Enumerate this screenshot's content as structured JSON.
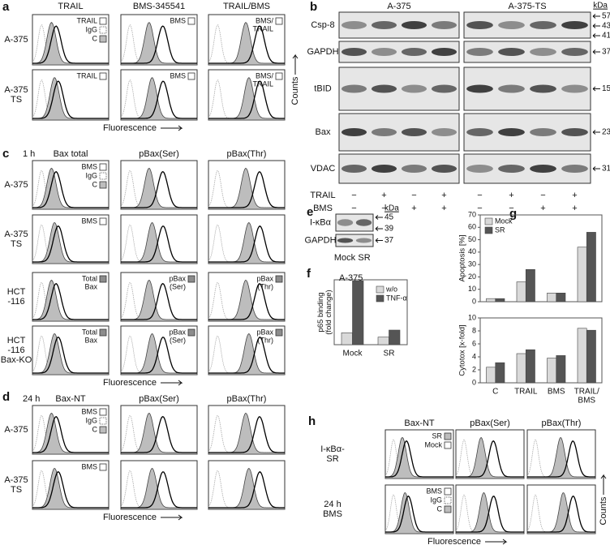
{
  "panels": {
    "a": {
      "label": "a",
      "columns": [
        "TRAIL",
        "BMS-345541",
        "TRAIL/BMS"
      ],
      "rows": [
        "A-375",
        "A-375\nTS"
      ],
      "legends": [
        [
          [
            {
              "text": "TRAIL",
              "fill": "#ffffff"
            },
            {
              "text": "IgG",
              "fill": "#ffffff",
              "border": "dotted"
            },
            {
              "text": "C",
              "fill": "#bdbdbd"
            }
          ],
          [
            {
              "text": "BMS",
              "fill": "#ffffff"
            }
          ],
          [
            {
              "text": "BMS/\nTRAIL",
              "fill": "#ffffff"
            }
          ]
        ],
        [
          [
            {
              "text": "TRAIL",
              "fill": "#ffffff"
            }
          ],
          [
            {
              "text": "BMS",
              "fill": "#ffffff"
            }
          ],
          [
            {
              "text": "BMS/\nTRAIL",
              "fill": "#ffffff"
            }
          ]
        ]
      ],
      "x_axis": "Fluorescence",
      "y_axis": "Counts"
    },
    "b": {
      "label": "b",
      "groups": [
        "A-375",
        "A-375-TS"
      ],
      "kda_title": "kDa",
      "rows": [
        {
          "name": "Csp-8",
          "kda": [
            57,
            43,
            41
          ]
        },
        {
          "name": "GAPDH",
          "kda": [
            37
          ]
        },
        {
          "name": "tBID",
          "kda": [
            15
          ]
        },
        {
          "name": "Bax",
          "kda": [
            23
          ]
        },
        {
          "name": "VDAC",
          "kda": [
            31
          ]
        }
      ],
      "treatments": [
        {
          "name": "TRAIL",
          "signs": [
            "−",
            "+",
            "−",
            "+",
            "−",
            "+",
            "−",
            "+"
          ]
        },
        {
          "name": "BMS",
          "signs": [
            "−",
            "−",
            "+",
            "+",
            "−",
            "−",
            "+",
            "+"
          ]
        }
      ]
    },
    "c": {
      "label": "c",
      "time": "1 h",
      "columns": [
        "Bax total",
        "pBax(Ser)",
        "pBax(Thr)"
      ],
      "rows": [
        "A-375",
        "A-375\nTS",
        "HCT\n-116",
        "HCT\n-116\nBax-KO"
      ],
      "legends": [
        [
          [
            {
              "text": "BMS",
              "fill": "#ffffff"
            },
            {
              "text": "IgG",
              "fill": "#ffffff",
              "border": "dotted"
            },
            {
              "text": "C",
              "fill": "#bdbdbd"
            }
          ],
          [],
          []
        ],
        [
          [
            {
              "text": "BMS",
              "fill": "#ffffff"
            }
          ],
          [],
          []
        ],
        [
          [
            {
              "text": "Total\nBax",
              "fill": "#8c8c8c"
            }
          ],
          [
            {
              "text": "pBax\n(Ser)",
              "fill": "#8c8c8c"
            }
          ],
          [
            {
              "text": "pBax\n(Thr)",
              "fill": "#8c8c8c"
            }
          ]
        ],
        [
          [
            {
              "text": "Total\nBax",
              "fill": "#8c8c8c"
            }
          ],
          [
            {
              "text": "pBax\n(Ser)",
              "fill": "#8c8c8c"
            }
          ],
          [
            {
              "text": "pBax\n(Thr)",
              "fill": "#8c8c8c"
            }
          ]
        ]
      ],
      "x_axis": "Fluorescence"
    },
    "d": {
      "label": "d",
      "time": "24 h",
      "columns": [
        "Bax-NT",
        "pBax(Ser)",
        "pBax(Thr)"
      ],
      "rows": [
        "A-375",
        "A-375\nTS"
      ],
      "legends": [
        [
          [
            {
              "text": "BMS",
              "fill": "#ffffff"
            },
            {
              "text": "IgG",
              "fill": "#ffffff",
              "border": "dotted"
            },
            {
              "text": "C",
              "fill": "#bdbdbd"
            }
          ],
          [],
          []
        ],
        [
          [
            {
              "text": "BMS",
              "fill": "#ffffff"
            }
          ],
          [],
          []
        ]
      ],
      "x_axis": "Fluorescence"
    },
    "e": {
      "label": "e",
      "kda_title": "kDa",
      "rows": [
        {
          "name": "I-κBα",
          "kda": [
            45,
            39
          ]
        },
        {
          "name": "GAPDH",
          "kda": [
            37
          ]
        }
      ],
      "lanes": [
        "Mock",
        "SR"
      ]
    },
    "h": {
      "label": "h",
      "columns": [
        "Bax-NT",
        "pBax(Ser)",
        "pBax(Thr)"
      ],
      "rows": [
        "I-κBα-\nSR",
        "24 h\nBMS"
      ],
      "legends": [
        [
          [
            {
              "text": "SR",
              "fill": "#bdbdbd"
            },
            {
              "text": "Mock",
              "fill": "#ffffff"
            }
          ],
          [],
          []
        ],
        [
          [
            {
              "text": "BMS",
              "fill": "#ffffff"
            },
            {
              "text": "IgG",
              "fill": "#ffffff",
              "border": "dotted"
            },
            {
              "text": "C",
              "fill": "#bdbdbd"
            }
          ],
          [],
          []
        ]
      ],
      "x_axis": "Fluorescence",
      "y_axis": "Counts"
    }
  },
  "chart_data": [
    {
      "type": "bar",
      "label": "f",
      "title": "A-375",
      "y_label": "p65 binding\n(fold change)",
      "categories": [
        "Mock",
        "SR"
      ],
      "series": [
        {
          "name": "w/o",
          "color": "#d9d9d9",
          "values": [
            1.1,
            0.7
          ]
        },
        {
          "name": "TNF-α",
          "color": "#555555",
          "values": [
            5.9,
            1.35
          ]
        }
      ],
      "ylim": [
        0,
        6
      ]
    },
    {
      "type": "bar",
      "label": "g",
      "categories": [
        "C",
        "TRAIL",
        "BMS",
        "TRAIL/\nBMS"
      ],
      "subplots": [
        {
          "y_label": "Apoptosis [%]",
          "ylim": [
            0,
            70
          ],
          "yticks": [
            0,
            10,
            20,
            30,
            40,
            50,
            60,
            70
          ],
          "series": [
            {
              "name": "Mock",
              "color": "#d9d9d9",
              "values": [
                2.5,
                16,
                7,
                44
              ]
            },
            {
              "name": "SR",
              "color": "#555555",
              "values": [
                2.5,
                26,
                7,
                56
              ]
            }
          ]
        },
        {
          "y_label": "Cytotox [x-fold]",
          "ylim": [
            0,
            10
          ],
          "yticks": [
            0,
            2,
            4,
            6,
            8,
            10
          ],
          "series": [
            {
              "color": "#d9d9d9",
              "values": [
                2.4,
                4.5,
                3.8,
                8.4
              ]
            },
            {
              "color": "#555555",
              "values": [
                3.1,
                5.1,
                4.2,
                8.1
              ]
            }
          ]
        }
      ]
    }
  ]
}
